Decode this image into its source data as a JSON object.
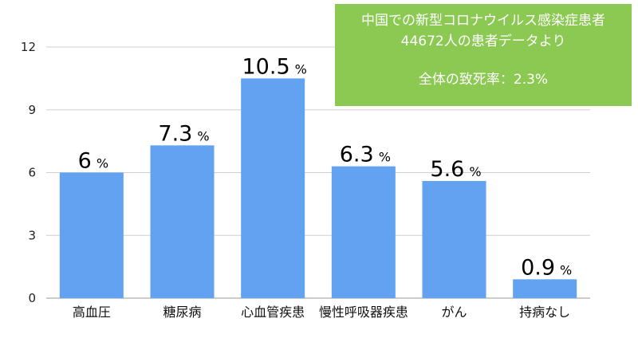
{
  "note": {
    "line1": "中国での新型コロナウイルス感染症患者",
    "line2": "44672人の患者データより",
    "line3": "全体の致死率：2.3%"
  },
  "colors": {
    "bar": "#62a2f1",
    "note_bg": "#8bc953",
    "grid": "#cfcfcf"
  },
  "chart_data": {
    "type": "bar",
    "categories": [
      "高血圧",
      "糖尿病",
      "心血管疾患",
      "慢性呼吸器疾患",
      "がん",
      "持病なし"
    ],
    "values": [
      6,
      7.3,
      10.5,
      6.3,
      5.6,
      0.9
    ],
    "labels": [
      "6",
      "7.3",
      "10.5",
      "6.3",
      "5.6",
      "0.9"
    ],
    "unit": "%",
    "ylim": [
      0,
      12
    ],
    "yticks": [
      0,
      3,
      6,
      9,
      12
    ],
    "grid": true
  }
}
